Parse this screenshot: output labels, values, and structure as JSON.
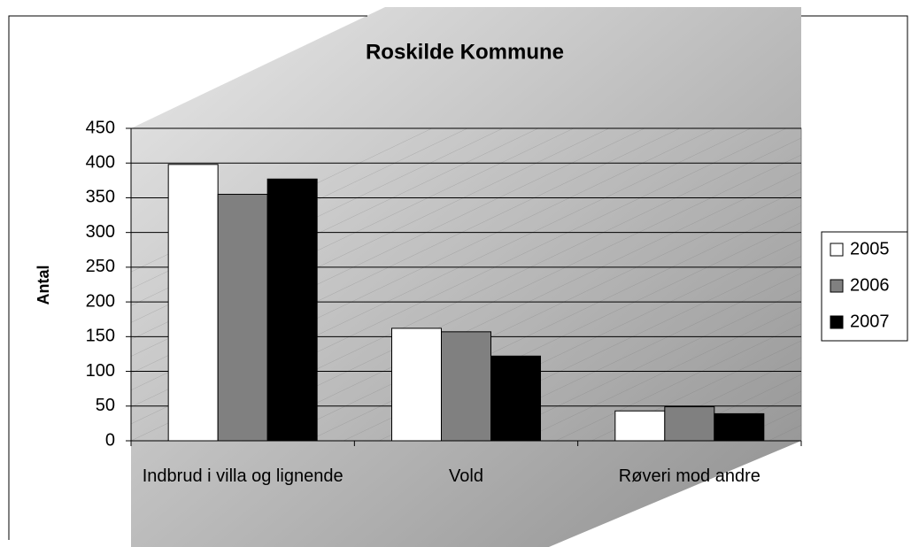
{
  "chart_data": {
    "type": "bar",
    "title": "Roskilde Kommune",
    "y_label": "Antal",
    "categories": [
      "Indbrud i villa og lignende",
      "Vold",
      "Røveri mod andre"
    ],
    "series": [
      {
        "name": "2005",
        "color": "#ffffff",
        "values": [
          398,
          162,
          43
        ]
      },
      {
        "name": "2006",
        "color": "#808080",
        "values": [
          355,
          157,
          49
        ]
      },
      {
        "name": "2007",
        "color": "#000000",
        "values": [
          377,
          122,
          39
        ]
      }
    ],
    "ylim": [
      0,
      450
    ],
    "yticks": [
      0,
      50,
      100,
      150,
      200,
      250,
      300,
      350,
      400,
      450
    ],
    "grid": true,
    "legend": "right"
  }
}
